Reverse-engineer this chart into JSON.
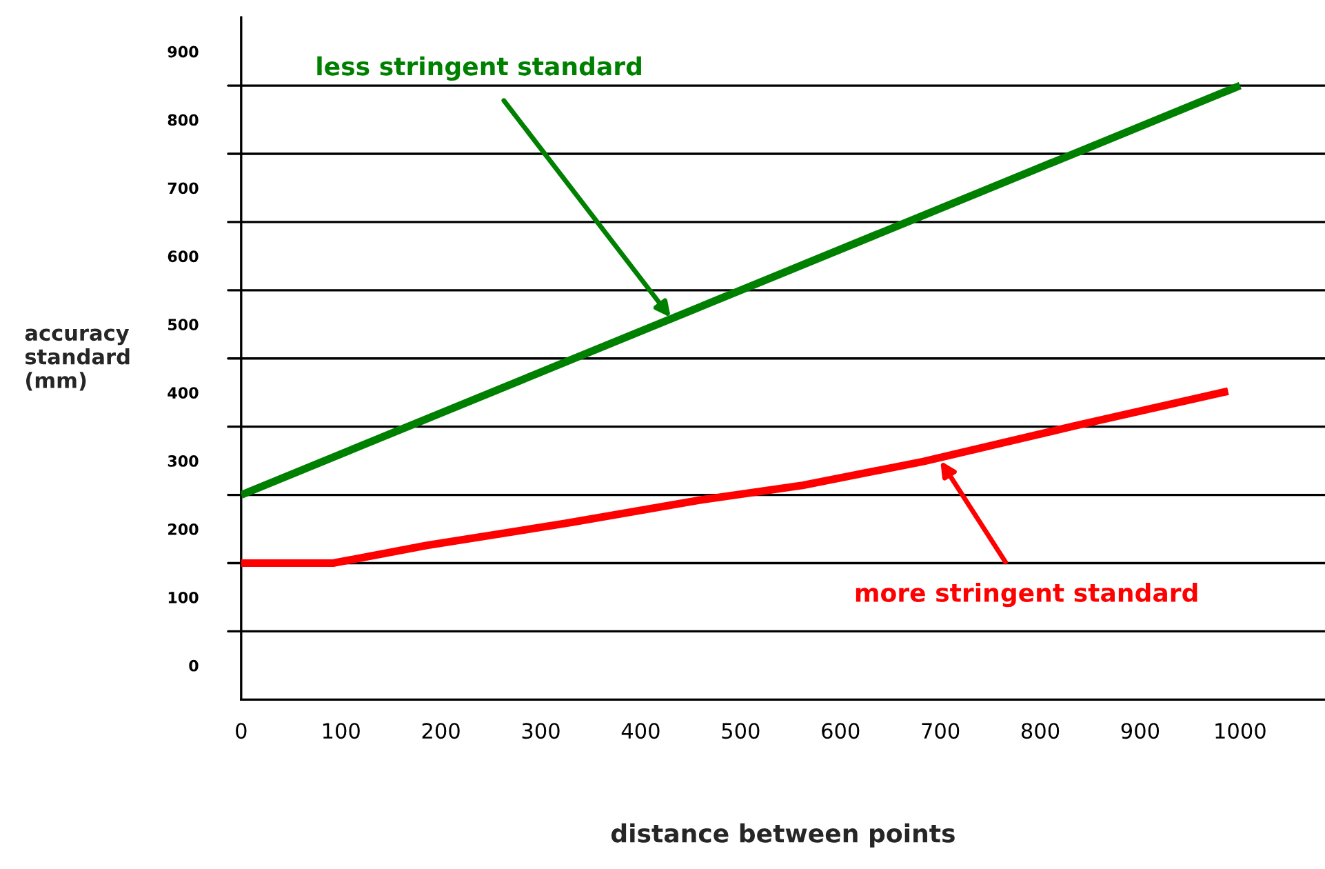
{
  "chart_data": {
    "type": "line",
    "xlabel": "distance between points",
    "ylabel": "accuracy\nstandard\n(mm)",
    "series": [
      {
        "color": "#008000",
        "x": [
          0,
          1000
        ],
        "values": [
          250,
          850
        ]
      },
      {
        "color": "#ff0000",
        "x": [
          0,
          92,
          186,
          324,
          462,
          562,
          683,
          834,
          988
        ],
        "values": [
          150,
          150,
          176,
          208,
          243,
          264,
          299,
          351,
          402
        ]
      }
    ],
    "annotations": [
      {
        "text": "less stringent standard",
        "x": 430,
        "y": 510
      },
      {
        "text": "more stringent standard",
        "x": 700,
        "y": 300
      }
    ],
    "xlim": [
      0,
      1085
    ],
    "xticks": [
      0,
      100,
      200,
      300,
      400,
      500,
      600,
      700,
      800,
      900,
      1000
    ],
    "ylim": [
      -50,
      950
    ],
    "yticks": [
      0,
      100,
      200,
      300,
      400,
      500,
      600,
      700,
      800,
      900
    ],
    "ref_lines": [
      {
        "axis": "y",
        "value": 50,
        "label": null,
        "color": "#000000"
      },
      {
        "axis": "y",
        "value": 150,
        "label": null,
        "color": "#000000"
      },
      {
        "axis": "y",
        "value": 250,
        "label": null,
        "color": "#000000"
      },
      {
        "axis": "y",
        "value": 350,
        "label": null,
        "color": "#000000"
      },
      {
        "axis": "y",
        "value": 450,
        "label": null,
        "color": "#000000"
      },
      {
        "axis": "y",
        "value": 550,
        "label": null,
        "color": "#000000"
      },
      {
        "axis": "y",
        "value": 650,
        "label": null,
        "color": "#000000"
      },
      {
        "axis": "y",
        "value": 750,
        "label": null,
        "color": "#000000"
      },
      {
        "axis": "y",
        "value": 850,
        "label": null,
        "color": "#000000"
      }
    ],
    "grid": false,
    "legend": false,
    "marker": "none",
    "line_style": "solid"
  }
}
